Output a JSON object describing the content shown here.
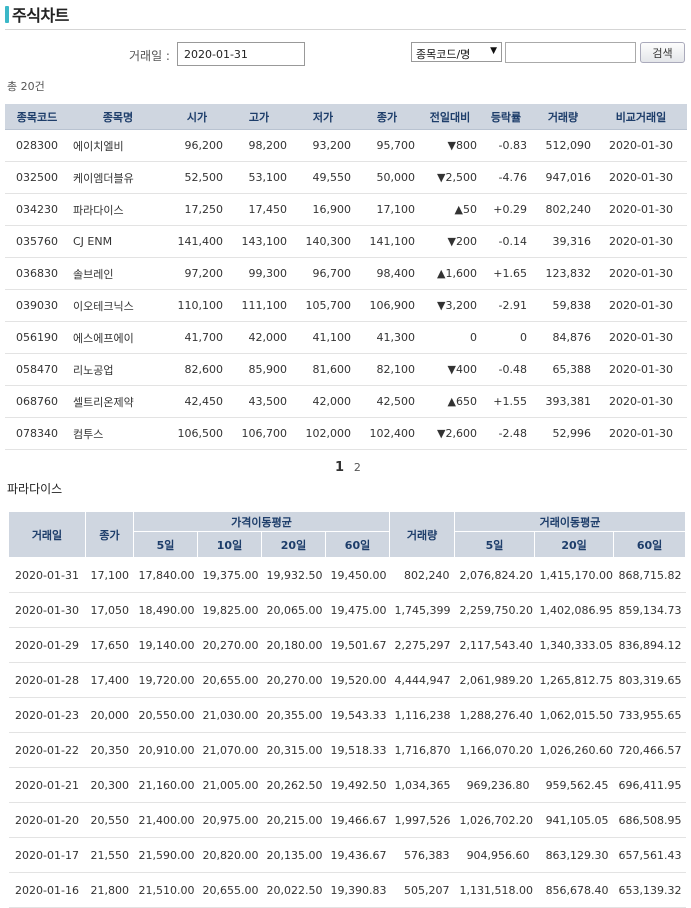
{
  "page": {
    "title": "주식차트"
  },
  "search": {
    "date_label": "거래일 :",
    "date_value": "2020-01-31",
    "select_value": "종목코드/명",
    "code_input_value": "",
    "search_button": "검색"
  },
  "list": {
    "total": "총 20건",
    "headers": [
      "종목코드",
      "종목명",
      "시가",
      "고가",
      "저가",
      "종가",
      "전일대비",
      "등락률",
      "거래량",
      "비교거래일"
    ],
    "rows": [
      {
        "code": "028300",
        "name": "에이치엘비",
        "open": "96,200",
        "high": "98,200",
        "low": "93,200",
        "close": "95,700",
        "dir": "down",
        "change": "800",
        "rate": "-0.83",
        "volume": "512,090",
        "date": "2020-01-30"
      },
      {
        "code": "032500",
        "name": "케이엠더블유",
        "open": "52,500",
        "high": "53,100",
        "low": "49,550",
        "close": "50,000",
        "dir": "down",
        "change": "2,500",
        "rate": "-4.76",
        "volume": "947,016",
        "date": "2020-01-30"
      },
      {
        "code": "034230",
        "name": "파라다이스",
        "open": "17,250",
        "high": "17,450",
        "low": "16,900",
        "close": "17,100",
        "dir": "up",
        "change": "50",
        "rate": "+0.29",
        "volume": "802,240",
        "date": "2020-01-30"
      },
      {
        "code": "035760",
        "name": "CJ ENM",
        "open": "141,400",
        "high": "143,100",
        "low": "140,300",
        "close": "141,100",
        "dir": "down",
        "change": "200",
        "rate": "-0.14",
        "volume": "39,316",
        "date": "2020-01-30"
      },
      {
        "code": "036830",
        "name": "솔브레인",
        "open": "97,200",
        "high": "99,300",
        "low": "96,700",
        "close": "98,400",
        "dir": "up",
        "change": "1,600",
        "rate": "+1.65",
        "volume": "123,832",
        "date": "2020-01-30"
      },
      {
        "code": "039030",
        "name": "이오테크닉스",
        "open": "110,100",
        "high": "111,100",
        "low": "105,700",
        "close": "106,900",
        "dir": "down",
        "change": "3,200",
        "rate": "-2.91",
        "volume": "59,838",
        "date": "2020-01-30"
      },
      {
        "code": "056190",
        "name": "에스에프에이",
        "open": "41,700",
        "high": "42,000",
        "low": "41,100",
        "close": "41,300",
        "dir": "none",
        "change": "0",
        "rate": "0",
        "volume": "84,876",
        "date": "2020-01-30"
      },
      {
        "code": "058470",
        "name": "리노공업",
        "open": "82,600",
        "high": "85,900",
        "low": "81,600",
        "close": "82,100",
        "dir": "down",
        "change": "400",
        "rate": "-0.48",
        "volume": "65,388",
        "date": "2020-01-30"
      },
      {
        "code": "068760",
        "name": "셀트리온제약",
        "open": "42,450",
        "high": "43,500",
        "low": "42,000",
        "close": "42,500",
        "dir": "up",
        "change": "650",
        "rate": "+1.55",
        "volume": "393,381",
        "date": "2020-01-30"
      },
      {
        "code": "078340",
        "name": "컴투스",
        "open": "106,500",
        "high": "106,700",
        "low": "102,000",
        "close": "102,400",
        "dir": "down",
        "change": "2,600",
        "rate": "-2.48",
        "volume": "52,996",
        "date": "2020-01-30"
      }
    ],
    "pages": [
      "1",
      "2"
    ],
    "current_page": "1"
  },
  "detail": {
    "stock_name": "파라다이스",
    "headers": {
      "date": "거래일",
      "close": "종가",
      "price_ma": "가격이동평균",
      "price_ma_cols": [
        "5일",
        "10일",
        "20일",
        "60일"
      ],
      "volume": "거래량",
      "volume_ma": "거래이동평균",
      "volume_ma_cols": [
        "5일",
        "20일",
        "60일"
      ]
    },
    "rows": [
      {
        "date": "2020-01-31",
        "close": "17,100",
        "ma5": "17,840.00",
        "ma10": "19,375.00",
        "ma20": "19,932.50",
        "ma60": "19,450.00",
        "volume": "802,240",
        "vma5": "2,076,824.20",
        "vma20": "1,415,170.00",
        "vma60": "868,715.82"
      },
      {
        "date": "2020-01-30",
        "close": "17,050",
        "ma5": "18,490.00",
        "ma10": "19,825.00",
        "ma20": "20,065.00",
        "ma60": "19,475.00",
        "volume": "1,745,399",
        "vma5": "2,259,750.20",
        "vma20": "1,402,086.95",
        "vma60": "859,134.73"
      },
      {
        "date": "2020-01-29",
        "close": "17,650",
        "ma5": "19,140.00",
        "ma10": "20,270.00",
        "ma20": "20,180.00",
        "ma60": "19,501.67",
        "volume": "2,275,297",
        "vma5": "2,117,543.40",
        "vma20": "1,340,333.05",
        "vma60": "836,894.12"
      },
      {
        "date": "2020-01-28",
        "close": "17,400",
        "ma5": "19,720.00",
        "ma10": "20,655.00",
        "ma20": "20,270.00",
        "ma60": "19,520.00",
        "volume": "4,444,947",
        "vma5": "2,061,989.20",
        "vma20": "1,265,812.75",
        "vma60": "803,319.65"
      },
      {
        "date": "2020-01-23",
        "close": "20,000",
        "ma5": "20,550.00",
        "ma10": "21,030.00",
        "ma20": "20,355.00",
        "ma60": "19,543.33",
        "volume": "1,116,238",
        "vma5": "1,288,276.40",
        "vma20": "1,062,015.50",
        "vma60": "733,955.65"
      },
      {
        "date": "2020-01-22",
        "close": "20,350",
        "ma5": "20,910.00",
        "ma10": "21,070.00",
        "ma20": "20,315.00",
        "ma60": "19,518.33",
        "volume": "1,716,870",
        "vma5": "1,166,070.20",
        "vma20": "1,026,260.60",
        "vma60": "720,466.57"
      },
      {
        "date": "2020-01-21",
        "close": "20,300",
        "ma5": "21,160.00",
        "ma10": "21,005.00",
        "ma20": "20,262.50",
        "ma60": "19,492.50",
        "volume": "1,034,365",
        "vma5": "969,236.80",
        "vma20": "959,562.45",
        "vma60": "696,411.95"
      },
      {
        "date": "2020-01-20",
        "close": "20,550",
        "ma5": "21,400.00",
        "ma10": "20,975.00",
        "ma20": "20,215.00",
        "ma60": "19,466.67",
        "volume": "1,997,526",
        "vma5": "1,026,702.20",
        "vma20": "941,105.05",
        "vma60": "686,508.95"
      },
      {
        "date": "2020-01-17",
        "close": "21,550",
        "ma5": "21,590.00",
        "ma10": "20,820.00",
        "ma20": "20,135.00",
        "ma60": "19,436.67",
        "volume": "576,383",
        "vma5": "904,956.60",
        "vma20": "863,129.30",
        "vma60": "657,561.43"
      },
      {
        "date": "2020-01-16",
        "close": "21,800",
        "ma5": "21,510.00",
        "ma10": "20,655.00",
        "ma20": "20,022.50",
        "ma60": "19,390.83",
        "volume": "505,207",
        "vma5": "1,131,518.00",
        "vma20": "856,678.40",
        "vma60": "653,139.32"
      }
    ]
  },
  "icons": {
    "up": "▲",
    "down": "▼",
    "select_arrow": "▼"
  },
  "colors": {
    "accent": "#3bb8c8",
    "header_bg": "#cfd6e0",
    "header_text": "#1d3d6a",
    "up": "#e01010",
    "down": "#1030c0"
  }
}
